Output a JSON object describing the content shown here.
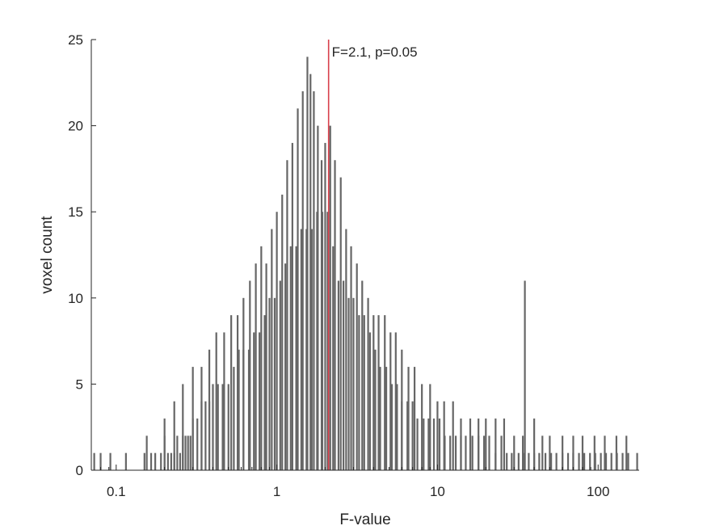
{
  "chart_data": {
    "type": "bar",
    "subtype": "histogram",
    "x_scale": "log",
    "xlabel": "F-value",
    "ylabel": "voxel count",
    "xlim": [
      0.07,
      180
    ],
    "ylim": [
      0,
      25
    ],
    "x_ticks": [
      {
        "value": 0.1,
        "label": "0.1"
      },
      {
        "value": 1,
        "label": "1"
      },
      {
        "value": 10,
        "label": "10"
      },
      {
        "value": 100,
        "label": "100"
      }
    ],
    "y_ticks": [
      {
        "value": 0,
        "label": "0"
      },
      {
        "value": 5,
        "label": "5"
      },
      {
        "value": 10,
        "label": "10"
      },
      {
        "value": 15,
        "label": "15"
      },
      {
        "value": 20,
        "label": "20"
      },
      {
        "value": 25,
        "label": "25"
      }
    ],
    "bar_color": "#666666",
    "threshold": {
      "x": 2.1,
      "label": "F=2.1, p=0.05",
      "color": "#d9404b"
    },
    "series": [
      {
        "x": [
          0.073,
          0.08,
          0.092,
          0.115,
          0.15,
          0.155,
          0.165,
          0.175,
          0.19,
          0.2,
          0.21,
          0.22,
          0.23,
          0.24,
          0.25,
          0.26,
          0.27,
          0.28,
          0.29,
          0.3,
          0.32,
          0.34,
          0.36,
          0.38,
          0.4,
          0.43,
          0.46,
          0.5,
          0.54,
          0.58,
          0.62,
          0.67,
          0.72,
          0.78,
          0.84,
          0.9,
          0.97,
          1.05,
          1.13,
          1.22,
          1.32,
          1.42,
          1.53,
          1.65,
          1.78,
          1.92,
          2.07,
          2.24,
          2.42,
          2.6,
          2.8,
          3.0,
          3.25,
          3.5,
          3.8,
          4.1,
          4.4,
          4.8,
          5.2,
          5.6,
          6.0,
          6.5,
          7.0,
          7.5,
          8.2,
          8.8,
          9.5,
          10.3,
          11.1,
          12.0,
          13,
          14,
          15,
          16.5,
          18,
          19.5,
          21,
          23,
          25,
          27,
          29,
          32,
          34.5,
          37,
          40,
          43,
          47,
          51,
          55,
          60,
          65,
          70,
          76,
          82,
          89,
          96,
          104,
          112,
          121,
          131,
          142,
          154,
          166,
          175
        ],
        "values": [
          1,
          1,
          1,
          1,
          1,
          2,
          1,
          1,
          1,
          2,
          1,
          1,
          1,
          2,
          1,
          2,
          2,
          2,
          2,
          3,
          3,
          4,
          4,
          4,
          5,
          5,
          5,
          5,
          6,
          7,
          7,
          7,
          8,
          8,
          9,
          10,
          10,
          11,
          12,
          13,
          13,
          14,
          14,
          14,
          15,
          15,
          15,
          13,
          11,
          11,
          10,
          10,
          9,
          9,
          8,
          7,
          6,
          6,
          5,
          5,
          4,
          4,
          4,
          3,
          3,
          3,
          3,
          3,
          2,
          2,
          2,
          2,
          2,
          2,
          2,
          2,
          2,
          1,
          2,
          1,
          1,
          1,
          1,
          1,
          1,
          1,
          1,
          1,
          1,
          1,
          1,
          1,
          1,
          1,
          1,
          1,
          1,
          1,
          1,
          1,
          1,
          1,
          0,
          1
        ]
      },
      {
        "x": [
          0.2,
          0.23,
          0.26,
          0.3,
          0.34,
          0.38,
          0.42,
          0.47,
          0.52,
          0.57,
          0.62,
          0.68,
          0.74,
          0.8,
          0.86,
          0.93,
          1.0,
          1.08,
          1.16,
          1.25,
          1.35,
          1.45,
          1.55,
          1.62,
          1.7,
          1.8,
          1.9,
          2.0,
          2.15,
          2.3,
          2.5,
          2.7,
          2.9,
          3.15,
          3.4,
          3.7,
          4.0,
          4.3,
          4.7,
          5.1,
          5.5,
          6.0,
          6.6,
          7.2,
          8.0,
          9.0,
          10.0,
          11.0,
          12.5,
          14,
          16,
          18,
          20,
          23,
          26,
          30,
          34,
          35,
          40,
          45,
          50,
          60,
          70,
          80,
          95,
          110,
          130,
          150
        ],
        "values": [
          3,
          4,
          5,
          6,
          6,
          7,
          8,
          8,
          9,
          9,
          10,
          11,
          12,
          13,
          12,
          14,
          15,
          16,
          18,
          19,
          21,
          22,
          24,
          23,
          22,
          20,
          18,
          19,
          20,
          18,
          17,
          14,
          13,
          12,
          11,
          10,
          9,
          9,
          9,
          8,
          8,
          7,
          6,
          6,
          5,
          5,
          4,
          4,
          4,
          3,
          3,
          3,
          3,
          3,
          3,
          2,
          2,
          11,
          3,
          2,
          2,
          2,
          2,
          2,
          2,
          2,
          2,
          2
        ]
      }
    ]
  }
}
